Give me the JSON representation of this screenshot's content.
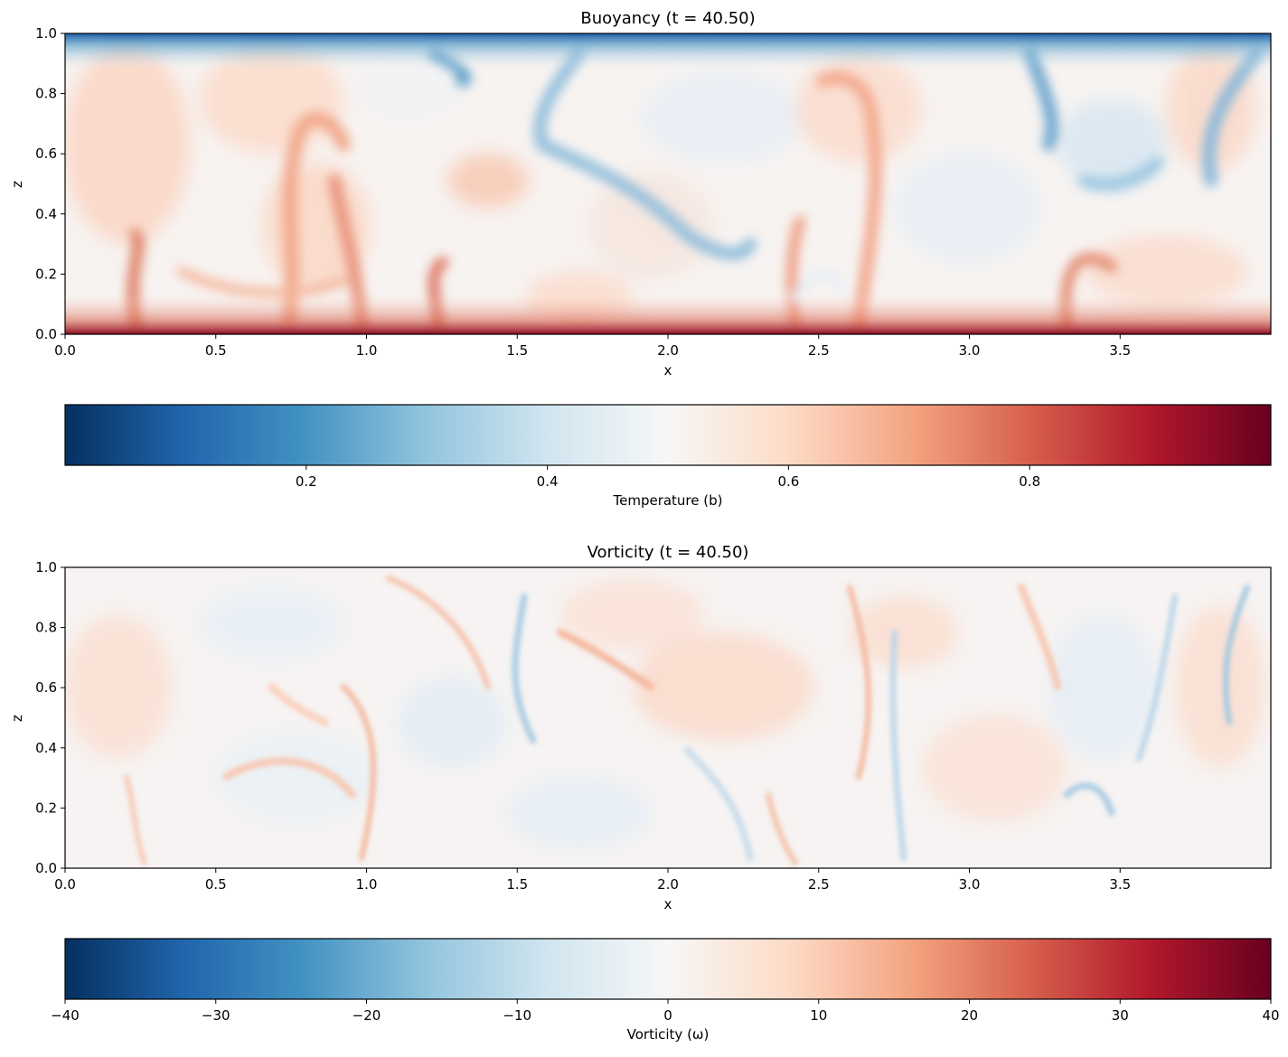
{
  "chart_data": [
    {
      "type": "heatmap",
      "title": "Buoyancy (t = 40.50)",
      "xlabel": "x",
      "ylabel": "z",
      "xlim": [
        0.0,
        4.0
      ],
      "ylim": [
        0.0,
        1.0
      ],
      "x_ticks": [
        "0.0",
        "0.5",
        "1.0",
        "1.5",
        "2.0",
        "2.5",
        "3.0",
        "3.5"
      ],
      "y_ticks": [
        "0.0",
        "0.2",
        "0.4",
        "0.6",
        "0.8",
        "1.0"
      ],
      "colormap": "RdBu_r",
      "colorbar": {
        "label": "Temperature (b)",
        "range": [
          0.0,
          1.0
        ],
        "ticks": [
          "0.2",
          "0.4",
          "0.6",
          "0.8"
        ],
        "tick_values": [
          0.2,
          0.4,
          0.6,
          0.8
        ]
      },
      "features": {
        "hot_plumes_x": [
          0.25,
          0.85,
          1.0,
          1.25,
          2.4,
          2.62,
          3.35
        ],
        "cold_plumes_x": [
          1.2,
          1.65,
          2.3,
          3.25,
          3.95
        ]
      }
    },
    {
      "type": "heatmap",
      "title": "Vorticity (t = 40.50)",
      "xlabel": "x",
      "ylabel": "z",
      "xlim": [
        0.0,
        4.0
      ],
      "ylim": [
        0.0,
        1.0
      ],
      "x_ticks": [
        "0.0",
        "0.5",
        "1.0",
        "1.5",
        "2.0",
        "2.5",
        "3.0",
        "3.5"
      ],
      "y_ticks": [
        "0.0",
        "0.2",
        "0.4",
        "0.6",
        "0.8",
        "1.0"
      ],
      "colormap": "RdBu_r",
      "colorbar": {
        "label": "Vorticity (ω)",
        "range": [
          -40,
          40
        ],
        "ticks": [
          "−40",
          "−30",
          "−20",
          "−10",
          "0",
          "10",
          "20",
          "30",
          "40"
        ],
        "tick_values": [
          -40,
          -30,
          -20,
          -10,
          0,
          10,
          20,
          30,
          40
        ]
      }
    }
  ],
  "colors": {
    "cmap_stops": [
      "#053061",
      "#2166ac",
      "#4393c3",
      "#92c5de",
      "#d1e5f0",
      "#f7f7f7",
      "#fddbc7",
      "#f4a582",
      "#d6604d",
      "#b2182b",
      "#67001f"
    ]
  }
}
